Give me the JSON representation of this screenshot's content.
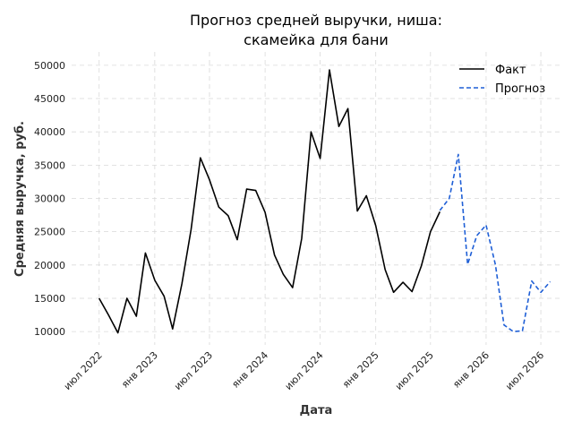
{
  "chart_data": {
    "type": "line",
    "title_lines": [
      "Прогноз средней выручки, ниша:",
      "скамейка для бани"
    ],
    "xlabel": "Дата",
    "ylabel": "Средняя выручка, руб.",
    "ylim": [
      8000,
      52000
    ],
    "xlim": [
      "2022-04-01",
      "2026-09-01"
    ],
    "yticks": [
      10000,
      15000,
      20000,
      25000,
      30000,
      35000,
      40000,
      45000,
      50000
    ],
    "xticks": [
      {
        "date": "2022-07-01",
        "label": "июл 2022"
      },
      {
        "date": "2023-01-01",
        "label": "янв 2023"
      },
      {
        "date": "2023-07-01",
        "label": "июл 2023"
      },
      {
        "date": "2024-01-01",
        "label": "янв 2024"
      },
      {
        "date": "2024-07-01",
        "label": "июл 2024"
      },
      {
        "date": "2025-01-01",
        "label": "янв 2025"
      },
      {
        "date": "2025-07-01",
        "label": "июл 2025"
      },
      {
        "date": "2026-01-01",
        "label": "янв 2026"
      },
      {
        "date": "2026-07-01",
        "label": "июл 2026"
      }
    ],
    "grid": true,
    "legend_position": "top-right",
    "series": [
      {
        "name": "Факт",
        "color": "#000000",
        "style": "solid",
        "points": [
          [
            "2022-07-01",
            15000
          ],
          [
            "2022-08-01",
            12500
          ],
          [
            "2022-09-01",
            9800
          ],
          [
            "2022-10-01",
            15000
          ],
          [
            "2022-11-01",
            12300
          ],
          [
            "2022-12-01",
            21800
          ],
          [
            "2023-01-01",
            17700
          ],
          [
            "2023-02-01",
            15300
          ],
          [
            "2023-03-01",
            10400
          ],
          [
            "2023-04-01",
            17200
          ],
          [
            "2023-05-01",
            25300
          ],
          [
            "2023-06-01",
            36100
          ],
          [
            "2023-07-01",
            32800
          ],
          [
            "2023-08-01",
            28700
          ],
          [
            "2023-09-01",
            27400
          ],
          [
            "2023-10-01",
            23800
          ],
          [
            "2023-11-01",
            31400
          ],
          [
            "2023-12-01",
            31200
          ],
          [
            "2024-01-01",
            27900
          ],
          [
            "2024-02-01",
            21500
          ],
          [
            "2024-03-01",
            18600
          ],
          [
            "2024-04-01",
            16600
          ],
          [
            "2024-05-01",
            24000
          ],
          [
            "2024-06-01",
            40000
          ],
          [
            "2024-07-01",
            36000
          ],
          [
            "2024-08-01",
            49300
          ],
          [
            "2024-09-01",
            40800
          ],
          [
            "2024-10-01",
            43500
          ],
          [
            "2024-11-01",
            28100
          ],
          [
            "2024-12-01",
            30400
          ],
          [
            "2025-01-01",
            25900
          ],
          [
            "2025-02-01",
            19300
          ],
          [
            "2025-03-01",
            15900
          ],
          [
            "2025-04-01",
            17400
          ],
          [
            "2025-05-01",
            16000
          ],
          [
            "2025-06-01",
            19900
          ],
          [
            "2025-07-01",
            25000
          ],
          [
            "2025-08-01",
            28000
          ]
        ]
      },
      {
        "name": "Прогноз",
        "color": "#1f5fd6",
        "style": "dashed",
        "points": [
          [
            "2025-08-01",
            28200
          ],
          [
            "2025-09-01",
            30000
          ],
          [
            "2025-10-01",
            36600
          ],
          [
            "2025-11-01",
            20100
          ],
          [
            "2025-12-01",
            24400
          ],
          [
            "2026-01-01",
            26000
          ],
          [
            "2026-02-01",
            20000
          ],
          [
            "2026-03-01",
            11000
          ],
          [
            "2026-04-01",
            10000
          ],
          [
            "2026-05-01",
            10100
          ],
          [
            "2026-06-01",
            17600
          ],
          [
            "2026-07-01",
            15900
          ],
          [
            "2026-08-01",
            17500
          ]
        ]
      }
    ]
  }
}
